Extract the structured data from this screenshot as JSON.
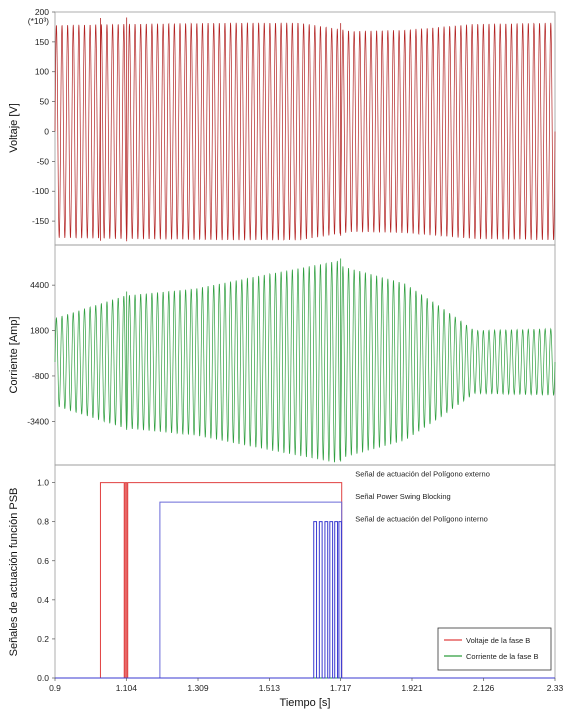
{
  "chart_data": [
    {
      "type": "line",
      "ylabel": "Voltaje [V]",
      "y_scale_note": "(*10³)",
      "y_ticks": [
        200,
        150,
        100,
        50,
        0,
        -50,
        -100,
        -150
      ],
      "ylim": [
        -190,
        200
      ],
      "xlim": [
        0.9,
        2.33
      ],
      "grid": false,
      "series": [
        {
          "color": "#b22222",
          "waveform": "sinusoid",
          "envelope": [
            [
              0.9,
              178
            ],
            [
              1.1,
              180
            ],
            [
              1.4,
              182
            ],
            [
              1.6,
              182
            ],
            [
              1.75,
              168
            ],
            [
              1.9,
              170
            ],
            [
              2.1,
              180
            ],
            [
              2.33,
              182
            ]
          ],
          "envelope_min": [
            [
              0.9,
              -178
            ],
            [
              1.1,
              -180
            ],
            [
              1.4,
              -182
            ],
            [
              1.6,
              -182
            ],
            [
              1.75,
              -168
            ],
            [
              1.9,
              -170
            ],
            [
              2.1,
              -180
            ],
            [
              2.33,
              -182
            ]
          ],
          "events": [
            1.03,
            1.105,
            1.717
          ]
        }
      ]
    },
    {
      "type": "line",
      "ylabel": "Corriente [Amp]",
      "y_ticks": [
        4400,
        1800,
        -800,
        -3400
      ],
      "ylim": [
        -5900,
        6700
      ],
      "xlim": [
        0.9,
        2.33
      ],
      "grid": false,
      "series": [
        {
          "color": "#2e9e3e",
          "waveform": "sinusoid",
          "envelope": [
            [
              0.9,
              2500
            ],
            [
              1.1,
              3800
            ],
            [
              1.3,
              4200
            ],
            [
              1.5,
              5000
            ],
            [
              1.71,
              5800
            ],
            [
              1.72,
              5500
            ],
            [
              1.9,
              4500
            ],
            [
              2.0,
              3200
            ],
            [
              2.1,
              1800
            ],
            [
              2.33,
              1900
            ]
          ],
          "envelope_min": [
            [
              0.9,
              -2500
            ],
            [
              1.1,
              -3800
            ],
            [
              1.3,
              -4200
            ],
            [
              1.5,
              -5000
            ],
            [
              1.71,
              -5800
            ],
            [
              1.72,
              -5500
            ],
            [
              1.9,
              -4500
            ],
            [
              2.0,
              -3200
            ],
            [
              2.1,
              -1800
            ],
            [
              2.33,
              -1900
            ]
          ],
          "events": [
            1.105,
            1.717
          ]
        }
      ]
    },
    {
      "type": "line",
      "ylabel": "Señales de actuación  función PSB",
      "xlabel": "Tiempo [s]",
      "x_ticks": [
        "0.9",
        "1.104",
        "1.309",
        "1.513",
        "1.717",
        "1.921",
        "2.126",
        "2.33"
      ],
      "y_ticks": [
        "1.0",
        "0.8",
        "0.6",
        "0.4",
        "0.2",
        "0.0"
      ],
      "xlim": [
        0.9,
        2.33
      ],
      "ylim": [
        0,
        1.09
      ],
      "grid": false,
      "legend_position": "bottom-right",
      "series": [
        {
          "name": "Voltaje de la fase B",
          "color": "#e04040",
          "steps": [
            [
              0.9,
              0
            ],
            [
              1.03,
              0
            ],
            [
              1.03,
              1
            ],
            [
              1.098,
              1
            ],
            [
              1.098,
              0
            ],
            [
              1.101,
              0
            ],
            [
              1.101,
              1
            ],
            [
              1.105,
              1
            ],
            [
              1.105,
              0
            ],
            [
              1.108,
              0
            ],
            [
              1.108,
              1
            ],
            [
              1.72,
              1
            ],
            [
              1.72,
              0
            ],
            [
              2.33,
              0
            ]
          ]
        },
        {
          "name": "Corriente de la fase B",
          "color": "#2e9e3e",
          "steps": [
            [
              0.9,
              0
            ],
            [
              2.33,
              0
            ]
          ]
        },
        {
          "color": "#6a6ad8",
          "steps": [
            [
              0.9,
              0
            ],
            [
              1.2,
              0
            ],
            [
              1.2,
              0.9
            ],
            [
              1.72,
              0.9
            ],
            [
              1.72,
              0
            ],
            [
              2.33,
              0
            ]
          ]
        },
        {
          "color": "#3a3ad0",
          "steps": [
            [
              0.9,
              0
            ],
            [
              1.64,
              0
            ],
            [
              1.64,
              0.8
            ],
            [
              1.648,
              0.8
            ],
            [
              1.648,
              0
            ],
            [
              1.656,
              0
            ],
            [
              1.656,
              0.8
            ],
            [
              1.664,
              0.8
            ],
            [
              1.664,
              0
            ],
            [
              1.672,
              0
            ],
            [
              1.672,
              0.8
            ],
            [
              1.68,
              0.8
            ],
            [
              1.68,
              0
            ],
            [
              1.686,
              0
            ],
            [
              1.686,
              0.8
            ],
            [
              1.694,
              0.8
            ],
            [
              1.694,
              0
            ],
            [
              1.7,
              0
            ],
            [
              1.7,
              0.8
            ],
            [
              1.708,
              0.8
            ],
            [
              1.708,
              0
            ],
            [
              1.712,
              0
            ],
            [
              1.712,
              0.8
            ],
            [
              1.719,
              0.8
            ],
            [
              1.719,
              0
            ],
            [
              2.33,
              0
            ]
          ]
        }
      ],
      "annotations": [
        {
          "text": "Señal de actuación del Polígono externo",
          "x": 1.73,
          "y": 1.0
        },
        {
          "text": "Señal Power Swing Blocking",
          "x": 1.73,
          "y": 0.9
        },
        {
          "text": "Señal de actuación del Polígono interno",
          "x": 1.73,
          "y": 0.8
        }
      ]
    }
  ]
}
